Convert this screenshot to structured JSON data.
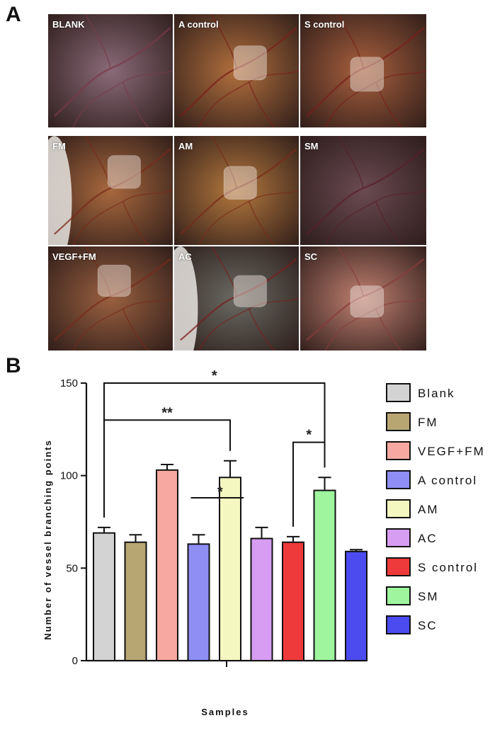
{
  "panel_a": {
    "letter": "A",
    "photos": [
      {
        "label": "BLANK",
        "base": "#8a6a78",
        "vessel": "#7a3a48",
        "membrane": false
      },
      {
        "label": "A control",
        "base": "#b2703e",
        "vessel": "#7a1f1a",
        "membrane": true
      },
      {
        "label": "S control",
        "base": "#a8603e",
        "vessel": "#7a1f1a",
        "membrane": true
      },
      {
        "label": "FM",
        "base": "#a8683e",
        "vessel": "#7a2a1a",
        "membrane": true
      },
      {
        "label": "AM",
        "base": "#b4783e",
        "vessel": "#7a2a1a",
        "membrane": true
      },
      {
        "label": "SM",
        "base": "#6a4a52",
        "vessel": "#5a1f2a",
        "membrane": false
      },
      {
        "label": "VEGF+FM",
        "base": "#9a6040",
        "vessel": "#7a2a1a",
        "membrane": true
      },
      {
        "label": "AC",
        "base": "#6a6a62",
        "vessel": "#7a1f1a",
        "membrane": true
      },
      {
        "label": "SC",
        "base": "#c08070",
        "vessel": "#8a3a3a",
        "membrane": true
      }
    ]
  },
  "panel_b": {
    "letter": "B"
  },
  "chart_data": {
    "type": "bar",
    "title": "",
    "xlabel": "Samples",
    "ylabel": "Number of vessel branching points",
    "ylim": [
      0,
      150
    ],
    "yticks": [
      0,
      50,
      100,
      150
    ],
    "categories": [
      "Blank",
      "FM",
      "VEGF+FM",
      "A control",
      "AM",
      "AC",
      "S control",
      "SM",
      "SC"
    ],
    "values": [
      69,
      64,
      103,
      63,
      99,
      66,
      64,
      92,
      59
    ],
    "errors": [
      3,
      4,
      3,
      5,
      9,
      6,
      3,
      7,
      1
    ],
    "colors": [
      "#d3d3d3",
      "#b8a672",
      "#f7a8a0",
      "#8e8ef5",
      "#f4f7bf",
      "#d79df3",
      "#ee3a3a",
      "#9ef59e",
      "#4b4bf0"
    ],
    "legend": {
      "placement": "right",
      "entries": [
        "Blank",
        "FM",
        "VEGF+FM",
        "A control",
        "AM",
        "AC",
        "S control",
        "SM",
        "SC"
      ]
    },
    "significance": [
      {
        "from": "Blank",
        "to": "SM",
        "label": "*",
        "y": 150
      },
      {
        "from": "Blank",
        "to": "AM",
        "label": "**",
        "y": 130
      },
      {
        "from": "A control",
        "to": "AM",
        "label": "*",
        "y": 88,
        "style": "flat"
      },
      {
        "from": "S control",
        "to": "SM",
        "label": "*",
        "y": 118
      }
    ]
  }
}
